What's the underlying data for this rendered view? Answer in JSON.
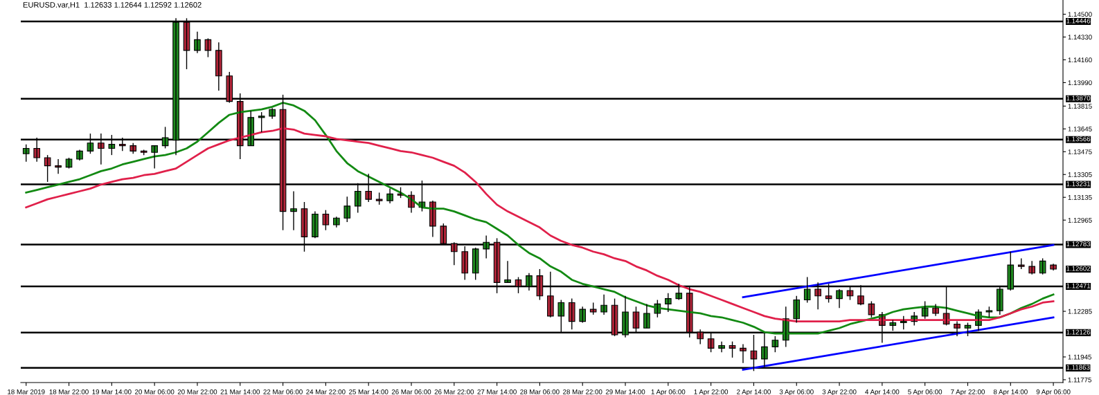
{
  "chart_data": {
    "type": "candlestick",
    "title": "EURUSD.var,H1  1.12633 1.12644 1.12592 1.12602",
    "categories": [
      "18 Mar 2019",
      null,
      null,
      null,
      "18 Mar 22:00",
      null,
      null,
      null,
      "19 Mar 14:00",
      null,
      null,
      null,
      "20 Mar 06:00",
      null,
      null,
      null,
      "20 Mar 22:00",
      null,
      null,
      null,
      "21 Mar 14:00",
      null,
      null,
      null,
      "22 Mar 06:00",
      null,
      null,
      null,
      "24 Mar 22:00",
      null,
      null,
      null,
      "25 Mar 14:00",
      null,
      null,
      null,
      "26 Mar 06:00",
      null,
      null,
      null,
      "26 Mar 22:00",
      null,
      null,
      null,
      "27 Mar 14:00",
      null,
      null,
      null,
      "28 Mar 06:00",
      null,
      null,
      null,
      "28 Mar 22:00",
      null,
      null,
      null,
      "29 Mar 14:00",
      null,
      null,
      null,
      "1 Apr 06:00",
      null,
      null,
      null,
      "1 Apr 22:00",
      null,
      null,
      null,
      "2 Apr 14:00",
      null,
      null,
      null,
      "3 Apr 06:00",
      null,
      null,
      null,
      "3 Apr 22:00",
      null,
      null,
      null,
      "4 Apr 14:00",
      null,
      null,
      null,
      "5 Apr 06:00",
      null,
      null,
      null,
      "7 Apr 22:00",
      null,
      null,
      null,
      "8 Apr 14:00",
      null,
      null,
      null,
      "9 Apr 06:00"
    ],
    "ohlc": [
      [
        1.1346,
        1.1353,
        1.134,
        1.135
      ],
      [
        1.135,
        1.1358,
        1.134,
        1.1343
      ],
      [
        1.1343,
        1.1345,
        1.1325,
        1.1337
      ],
      [
        1.1337,
        1.1342,
        1.1331,
        1.1336
      ],
      [
        1.1336,
        1.1343,
        1.1335,
        1.1342
      ],
      [
        1.1342,
        1.1349,
        1.1341,
        1.1348
      ],
      [
        1.1348,
        1.1361,
        1.1346,
        1.1354
      ],
      [
        1.1354,
        1.1361,
        1.1338,
        1.135
      ],
      [
        1.135,
        1.136,
        1.1345,
        1.1353
      ],
      [
        1.1353,
        1.1358,
        1.1348,
        1.1352
      ],
      [
        1.1352,
        1.1354,
        1.1346,
        1.1348
      ],
      [
        1.1348,
        1.1349,
        1.1345,
        1.1347
      ],
      [
        1.1347,
        1.1352,
        1.1335,
        1.1352
      ],
      [
        1.1352,
        1.1366,
        1.135,
        1.1358
      ],
      [
        1.1356,
        1.1447,
        1.1345,
        1.1444
      ],
      [
        1.1444,
        1.1447,
        1.1409,
        1.1423
      ],
      [
        1.1423,
        1.1437,
        1.1421,
        1.1431
      ],
      [
        1.1431,
        1.1432,
        1.1418,
        1.1423
      ],
      [
        1.1423,
        1.1429,
        1.1393,
        1.1404
      ],
      [
        1.1404,
        1.1407,
        1.1384,
        1.1385
      ],
      [
        1.1385,
        1.1391,
        1.1342,
        1.1352
      ],
      [
        1.1352,
        1.1378,
        1.1352,
        1.1373
      ],
      [
        1.1373,
        1.1377,
        1.1362,
        1.1374
      ],
      [
        1.1374,
        1.138,
        1.1372,
        1.1379
      ],
      [
        1.1379,
        1.139,
        1.1289,
        1.1303
      ],
      [
        1.1303,
        1.1318,
        1.1289,
        1.1305
      ],
      [
        1.1305,
        1.131,
        1.1273,
        1.1284
      ],
      [
        1.1284,
        1.1303,
        1.1283,
        1.1301
      ],
      [
        1.1301,
        1.1304,
        1.1289,
        1.1293
      ],
      [
        1.1293,
        1.1299,
        1.1291,
        1.1298
      ],
      [
        1.1298,
        1.1314,
        1.1295,
        1.1307
      ],
      [
        1.1307,
        1.1324,
        1.1302,
        1.1318
      ],
      [
        1.1318,
        1.1331,
        1.131,
        1.1312
      ],
      [
        1.1312,
        1.1317,
        1.1308,
        1.1311
      ],
      [
        1.1311,
        1.132,
        1.1309,
        1.1316
      ],
      [
        1.1316,
        1.1321,
        1.1313,
        1.1315
      ],
      [
        1.1315,
        1.1318,
        1.1302,
        1.1306
      ],
      [
        1.1306,
        1.1326,
        1.1303,
        1.131
      ],
      [
        1.131,
        1.1311,
        1.1284,
        1.1292
      ],
      [
        1.1292,
        1.1294,
        1.1278,
        1.1279
      ],
      [
        1.1279,
        1.128,
        1.1263,
        1.1273
      ],
      [
        1.1273,
        1.1277,
        1.1252,
        1.1257
      ],
      [
        1.1257,
        1.1276,
        1.1252,
        1.1275
      ],
      [
        1.1275,
        1.1285,
        1.1268,
        1.128
      ],
      [
        1.128,
        1.1283,
        1.1242,
        1.125
      ],
      [
        1.125,
        1.1266,
        1.125,
        1.1252
      ],
      [
        1.1252,
        1.1254,
        1.1242,
        1.1247
      ],
      [
        1.1247,
        1.1257,
        1.1244,
        1.1255
      ],
      [
        1.1255,
        1.126,
        1.1237,
        1.124
      ],
      [
        1.124,
        1.1258,
        1.1224,
        1.1225
      ],
      [
        1.1225,
        1.1237,
        1.1213,
        1.1235
      ],
      [
        1.1235,
        1.1238,
        1.1215,
        1.1221
      ],
      [
        1.1221,
        1.1232,
        1.122,
        1.123
      ],
      [
        1.123,
        1.1235,
        1.1226,
        1.1228
      ],
      [
        1.1228,
        1.1241,
        1.1226,
        1.1233
      ],
      [
        1.1233,
        1.1238,
        1.121,
        1.1211
      ],
      [
        1.1211,
        1.124,
        1.1209,
        1.1228
      ],
      [
        1.1228,
        1.1232,
        1.1213,
        1.1216
      ],
      [
        1.1216,
        1.1234,
        1.1216,
        1.1227
      ],
      [
        1.1227,
        1.1237,
        1.1224,
        1.1234
      ],
      [
        1.1234,
        1.1242,
        1.1228,
        1.1238
      ],
      [
        1.1238,
        1.1249,
        1.1237,
        1.1242
      ],
      [
        1.1242,
        1.1247,
        1.1209,
        1.1213
      ],
      [
        1.1213,
        1.1215,
        1.1204,
        1.1208
      ],
      [
        1.1208,
        1.1213,
        1.1198,
        1.1201
      ],
      [
        1.1201,
        1.1206,
        1.1198,
        1.1203
      ],
      [
        1.1203,
        1.1206,
        1.1194,
        1.1201
      ],
      [
        1.1201,
        1.1204,
        1.119,
        1.1199
      ],
      [
        1.1199,
        1.1211,
        1.1184,
        1.1193
      ],
      [
        1.1193,
        1.1212,
        1.1187,
        1.1202
      ],
      [
        1.1202,
        1.121,
        1.1198,
        1.1207
      ],
      [
        1.1207,
        1.1232,
        1.1202,
        1.1223
      ],
      [
        1.1223,
        1.124,
        1.122,
        1.1237
      ],
      [
        1.1237,
        1.1254,
        1.1235,
        1.1245
      ],
      [
        1.1245,
        1.125,
        1.123,
        1.124
      ],
      [
        1.124,
        1.1249,
        1.1235,
        1.1238
      ],
      [
        1.1238,
        1.1245,
        1.1231,
        1.1244
      ],
      [
        1.1244,
        1.1247,
        1.1237,
        1.124
      ],
      [
        1.124,
        1.1248,
        1.1233,
        1.1234
      ],
      [
        1.1234,
        1.1236,
        1.1224,
        1.1226
      ],
      [
        1.1226,
        1.1228,
        1.1205,
        1.1218
      ],
      [
        1.1218,
        1.1222,
        1.1214,
        1.122
      ],
      [
        1.122,
        1.1225,
        1.1215,
        1.1221
      ],
      [
        1.1221,
        1.1228,
        1.1218,
        1.1225
      ],
      [
        1.1225,
        1.1236,
        1.1223,
        1.1231
      ],
      [
        1.1231,
        1.1234,
        1.1225,
        1.1227
      ],
      [
        1.1227,
        1.1247,
        1.1218,
        1.1219
      ],
      [
        1.1219,
        1.1221,
        1.121,
        1.1216
      ],
      [
        1.1216,
        1.122,
        1.121,
        1.1218
      ],
      [
        1.1218,
        1.123,
        1.1214,
        1.1228
      ],
      [
        1.1228,
        1.1232,
        1.1224,
        1.1229
      ],
      [
        1.1229,
        1.1247,
        1.1226,
        1.1245
      ],
      [
        1.1245,
        1.1273,
        1.1244,
        1.1263
      ],
      [
        1.1263,
        1.1268,
        1.126,
        1.1262
      ],
      [
        1.1262,
        1.1266,
        1.1256,
        1.1257
      ],
      [
        1.1257,
        1.1268,
        1.1256,
        1.1266
      ],
      [
        1.1263,
        1.1264,
        1.1259,
        1.126
      ]
    ],
    "series": [
      {
        "type": "line",
        "color": "#138a13",
        "values": [
          1.1317,
          1.1319,
          1.1321,
          1.1323,
          1.1325,
          1.1327,
          1.133,
          1.1333,
          1.1335,
          1.1338,
          1.134,
          1.1342,
          1.1344,
          1.1345,
          1.1347,
          1.135,
          1.1355,
          1.1362,
          1.1369,
          1.1375,
          1.1377,
          1.1378,
          1.1379,
          1.1381,
          1.1384,
          1.1382,
          1.1378,
          1.1371,
          1.136,
          1.1348,
          1.1339,
          1.1333,
          1.1329,
          1.1325,
          1.1321,
          1.1317,
          1.1312,
          1.1306,
          1.1305,
          1.1305,
          1.1303,
          1.13,
          1.1297,
          1.1295,
          1.129,
          1.1285,
          1.1278,
          1.1272,
          1.1268,
          1.1262,
          1.1258,
          1.1252,
          1.1249,
          1.1247,
          1.1245,
          1.1243,
          1.1239,
          1.1236,
          1.1233,
          1.1231,
          1.123,
          1.1229,
          1.1228,
          1.1227,
          1.1225,
          1.1224,
          1.1222,
          1.122,
          1.1217,
          1.1213,
          1.1212,
          1.1212,
          1.1212,
          1.1212,
          1.1212,
          1.1214,
          1.1216,
          1.1219,
          1.1221,
          1.1223,
          1.1225,
          1.1228,
          1.123,
          1.1231,
          1.1232,
          1.1232,
          1.1231,
          1.1229,
          1.1227,
          1.1225,
          1.1224,
          1.1224,
          1.1227,
          1.1231,
          1.1234,
          1.1238,
          1.1241
        ]
      },
      {
        "type": "line",
        "color": "#e0204a",
        "values": [
          1.1306,
          1.1309,
          1.1312,
          1.1314,
          1.1316,
          1.1318,
          1.132,
          1.1323,
          1.1325,
          1.1327,
          1.1328,
          1.133,
          1.1331,
          1.1333,
          1.1335,
          1.134,
          1.1345,
          1.135,
          1.1353,
          1.1356,
          1.1358,
          1.136,
          1.1362,
          1.1363,
          1.1365,
          1.1364,
          1.1361,
          1.136,
          1.1359,
          1.1357,
          1.1356,
          1.1355,
          1.1354,
          1.1352,
          1.135,
          1.1348,
          1.1347,
          1.1345,
          1.1343,
          1.134,
          1.1337,
          1.1332,
          1.1325,
          1.1316,
          1.1308,
          1.1303,
          1.1299,
          1.1295,
          1.1291,
          1.1285,
          1.1281,
          1.1278,
          1.1276,
          1.1273,
          1.1271,
          1.1268,
          1.1266,
          1.1262,
          1.1259,
          1.1255,
          1.1252,
          1.1248,
          1.1245,
          1.1243,
          1.124,
          1.1237,
          1.1234,
          1.1231,
          1.1228,
          1.1225,
          1.1223,
          1.1222,
          1.1221,
          1.1221,
          1.1221,
          1.1221,
          1.1221,
          1.1222,
          1.1222,
          1.1222,
          1.1222,
          1.1222,
          1.1222,
          1.1222,
          1.1222,
          1.1222,
          1.1222,
          1.1222,
          1.1222,
          1.1222,
          1.1222,
          1.1224,
          1.1227,
          1.123,
          1.1232,
          1.1235,
          1.1236
        ]
      },
      {
        "type": "line",
        "color": "#0000ff",
        "values": [
          null,
          null,
          null,
          null,
          null,
          null,
          null,
          null,
          null,
          null,
          null,
          null,
          null,
          null,
          null,
          null,
          null,
          null,
          null,
          null,
          null,
          null,
          null,
          null,
          null,
          null,
          null,
          null,
          null,
          null,
          null,
          null,
          null,
          null,
          null,
          null,
          null,
          null,
          null,
          null,
          null,
          null,
          null,
          null,
          null,
          null,
          null,
          null,
          null,
          null,
          null,
          null,
          null,
          null,
          null,
          null,
          null,
          null,
          null,
          null,
          null,
          null,
          null,
          null,
          null,
          null,
          null,
          1.1239,
          null,
          null,
          null,
          null,
          null,
          null,
          null,
          null,
          null,
          null,
          null,
          null,
          null,
          null,
          null,
          null,
          null,
          null,
          null,
          null,
          null,
          null,
          null,
          null,
          null,
          null,
          null,
          null,
          1.1278
        ]
      },
      {
        "type": "line",
        "color": "#0000ff",
        "values": [
          null,
          null,
          null,
          null,
          null,
          null,
          null,
          null,
          null,
          null,
          null,
          null,
          null,
          null,
          null,
          null,
          null,
          null,
          null,
          null,
          null,
          null,
          null,
          null,
          null,
          null,
          null,
          null,
          null,
          null,
          null,
          null,
          null,
          null,
          null,
          null,
          null,
          null,
          null,
          null,
          null,
          null,
          null,
          null,
          null,
          null,
          null,
          null,
          null,
          null,
          null,
          null,
          null,
          null,
          null,
          null,
          null,
          null,
          null,
          null,
          null,
          null,
          null,
          null,
          null,
          null,
          null,
          1.1185,
          null,
          null,
          null,
          null,
          null,
          null,
          null,
          null,
          null,
          null,
          null,
          null,
          null,
          null,
          null,
          null,
          null,
          null,
          null,
          null,
          null,
          null,
          null,
          null,
          null,
          null,
          null,
          null,
          1.1224
        ]
      }
    ],
    "ylim": [
      1.11754,
      1.14606
    ],
    "yticks": [
      {
        "value": 1.145,
        "label": "1.14500"
      },
      {
        "value": 1.1433,
        "label": "1.14330"
      },
      {
        "value": 1.1416,
        "label": "1.14160"
      },
      {
        "value": 1.1399,
        "label": "1.13990"
      },
      {
        "value": 1.13815,
        "label": "1.13815"
      },
      {
        "value": 1.13645,
        "label": "1.13645"
      },
      {
        "value": 1.13475,
        "label": "1.13475"
      },
      {
        "value": 1.13305,
        "label": "1.13305"
      },
      {
        "value": 1.13135,
        "label": "1.13135"
      },
      {
        "value": 1.12965,
        "label": "1.12965"
      },
      {
        "value": 1.12285,
        "label": "1.12285"
      },
      {
        "value": 1.11945,
        "label": "1.11945"
      },
      {
        "value": 1.11775,
        "label": "1.11775"
      }
    ],
    "ref_lines": [
      {
        "axis": "y",
        "value": 1.14446,
        "label": "1.14446",
        "color": "#000000"
      },
      {
        "axis": "y",
        "value": 1.1387,
        "label": "1.13870",
        "color": "#000000"
      },
      {
        "axis": "y",
        "value": 1.13566,
        "label": "1.13566",
        "color": "#000000"
      },
      {
        "axis": "y",
        "value": 1.13231,
        "label": "1.13231",
        "color": "#000000"
      },
      {
        "axis": "y",
        "value": 1.12783,
        "label": "1.12783",
        "color": "#000000"
      },
      {
        "axis": "y",
        "value": 1.12471,
        "label": "1.12471",
        "color": "#000000"
      },
      {
        "axis": "y",
        "value": 1.12126,
        "label": "1.12126",
        "color": "#000000"
      },
      {
        "axis": "y",
        "value": 1.11863,
        "label": "1.11863",
        "color": "#000000"
      }
    ],
    "annotations": [
      "1.12602"
    ],
    "grid": false,
    "legend": false
  }
}
